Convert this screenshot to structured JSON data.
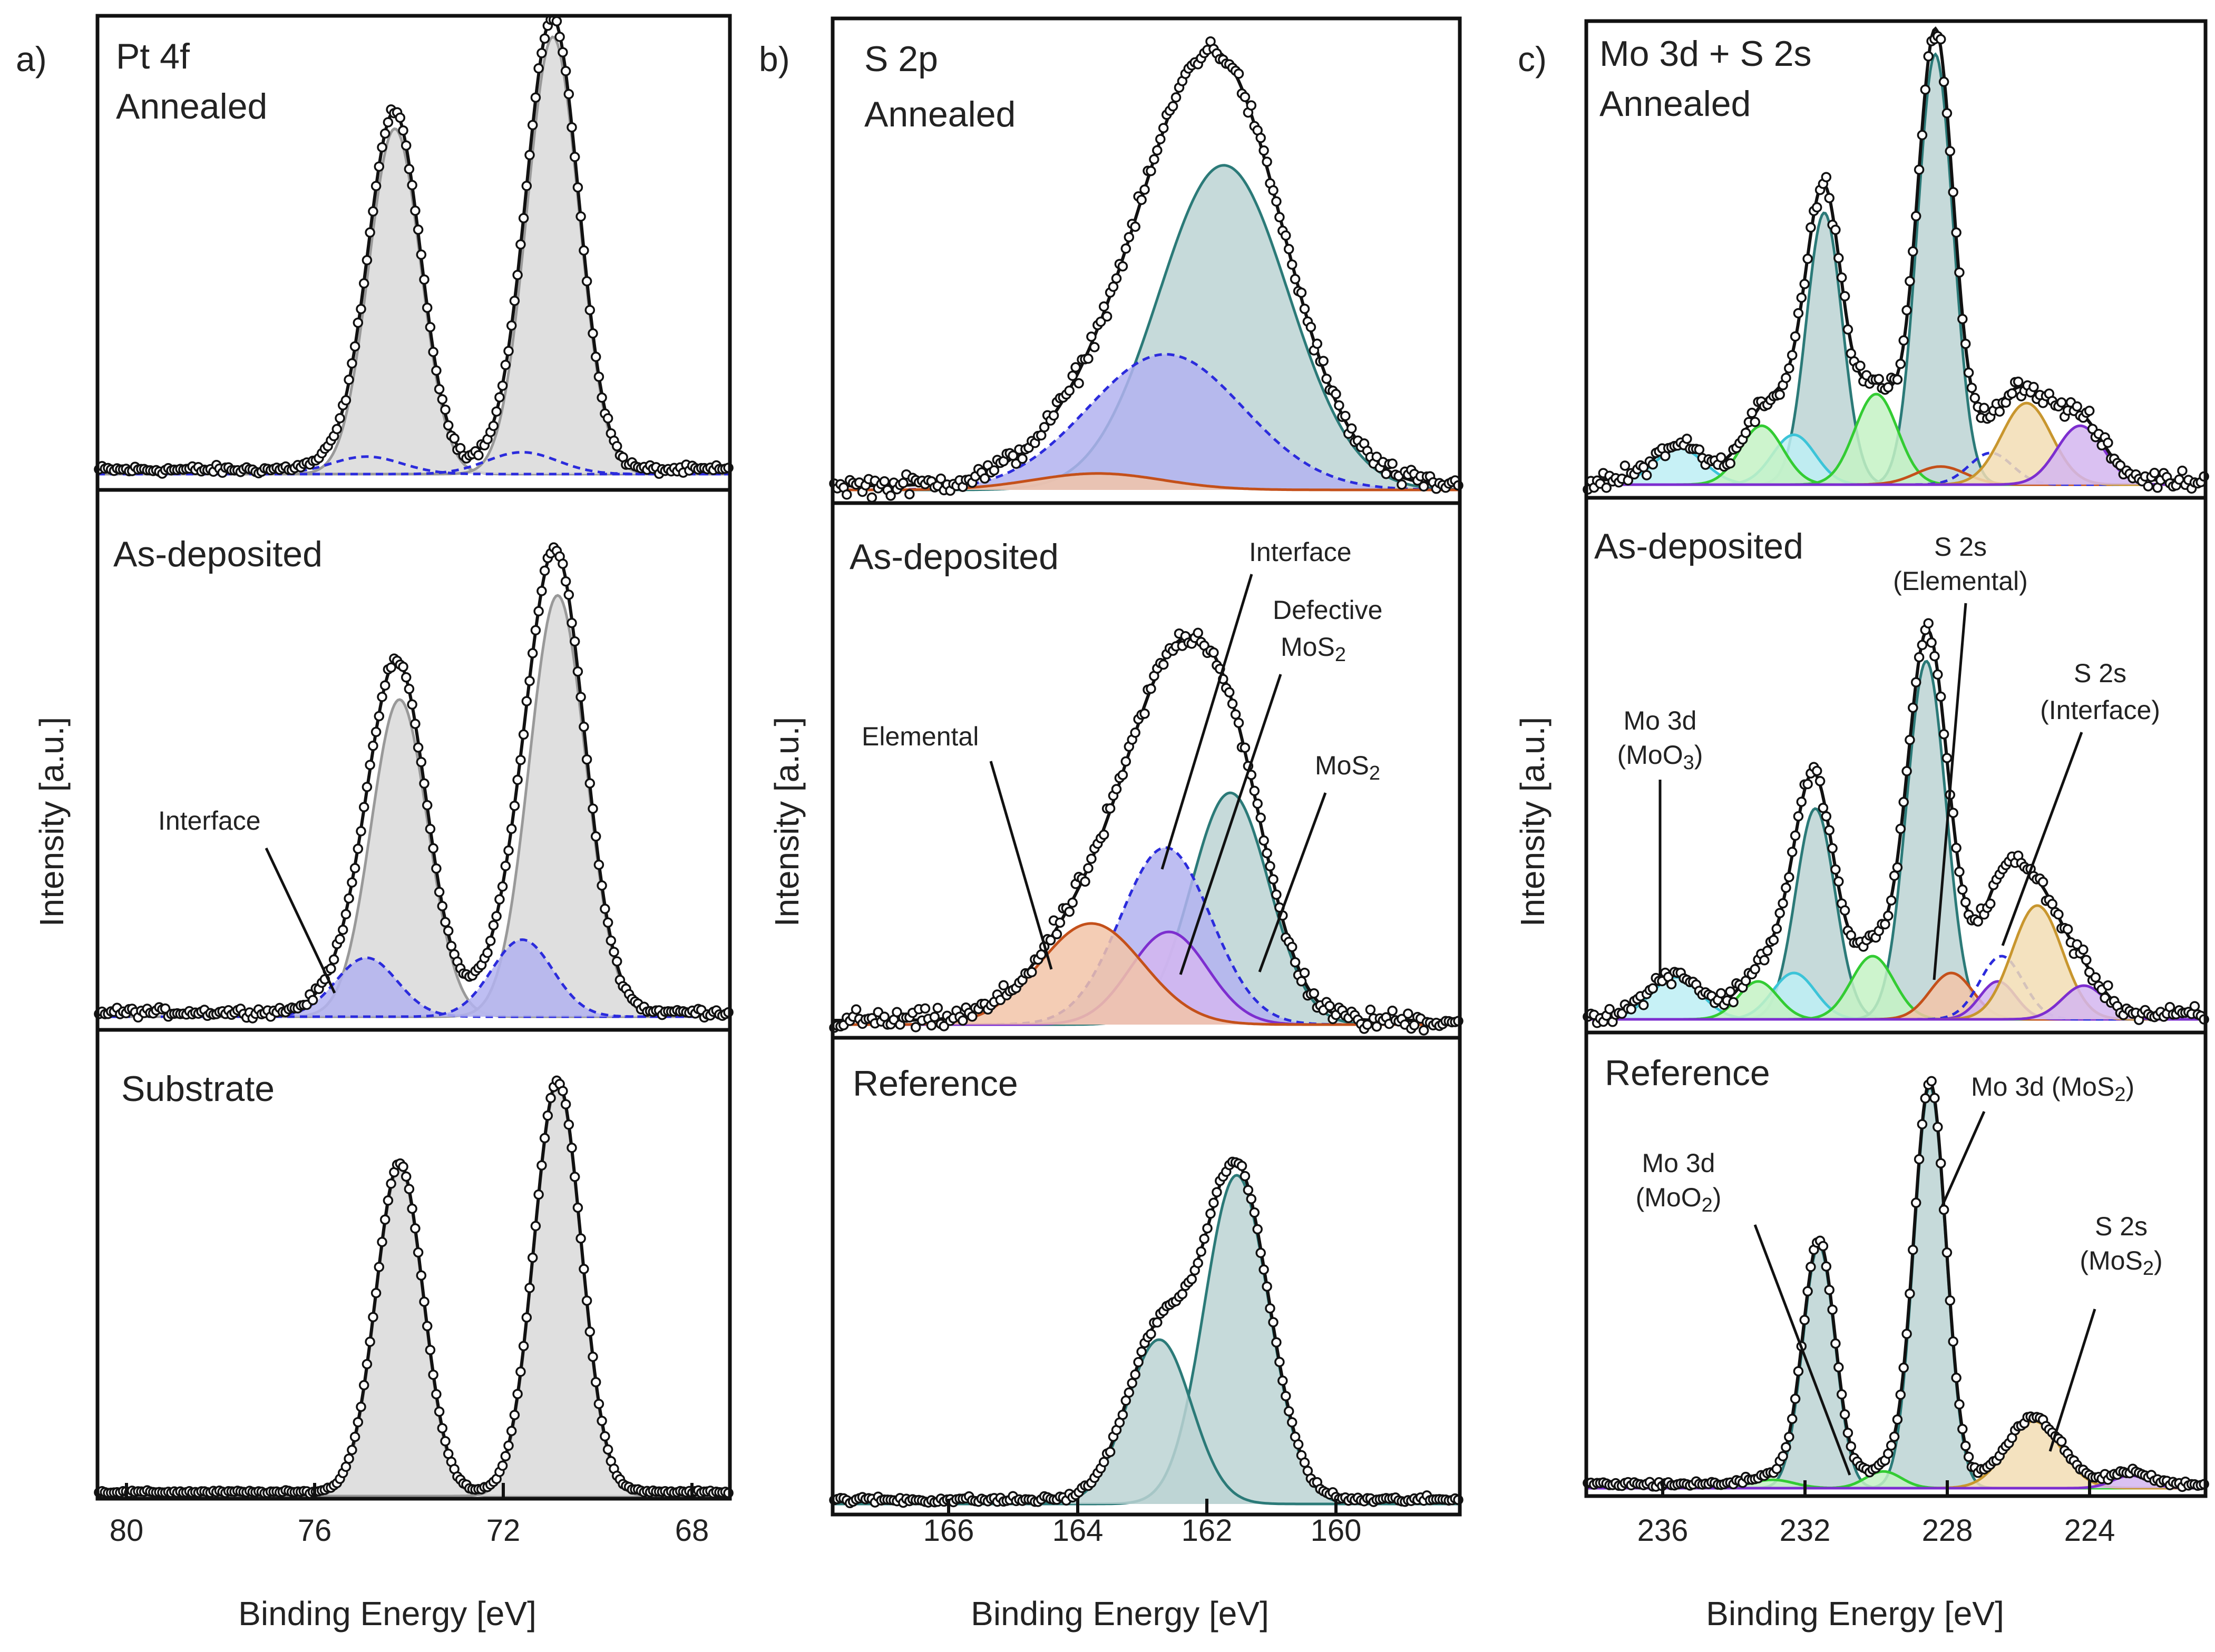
{
  "colors": {
    "pt_fill": "#d9d9d9",
    "pt_line": "#999999",
    "interface": "#2b2bdc",
    "interface_fill": "#b3b3f0",
    "mos2_fill": "#bcd3d3",
    "mos2_line": "#2b7a78",
    "elemental": "#c4501a",
    "elemental_fill": "#f2c4a8",
    "defective": "#7d2ecf",
    "defective_fill": "#d4b6f0",
    "moo3": "#3cc4d8",
    "moo3_fill": "#bdeff5",
    "moo2": "#33cc33",
    "moo2_fill": "#c4f2c4",
    "s2s_mos2": "#c8962e",
    "s2s_mos2_fill": "#f2ddb4",
    "data_point": "#111111",
    "fit": "#111111"
  },
  "chart_data": [
    {
      "id": "a",
      "type": "line",
      "letter": "a)",
      "title": "Pt 4f",
      "xlabel": "Binding Energy [eV]",
      "ylabel": "Intensity [a.u.]",
      "xlim": [
        80.7,
        67.3
      ],
      "xticks": [
        80,
        76,
        72,
        68
      ],
      "xtick_labels": [
        "80",
        "76",
        "72",
        "68"
      ],
      "subpanels": [
        {
          "label": "Annealed",
          "components": [
            {
              "name": "Pt 4f5/2",
              "center": 74.4,
              "amp": 0.79,
              "width": 0.55,
              "color_key": "pt_line",
              "fill_key": "pt_fill",
              "dashed": false
            },
            {
              "name": "Pt 4f7/2",
              "center": 71.05,
              "amp": 1.0,
              "width": 0.55,
              "color_key": "pt_line",
              "fill_key": "pt_fill",
              "dashed": false
            },
            {
              "name": "Interface 5/2",
              "center": 75.0,
              "amp": 0.04,
              "width": 0.75,
              "color_key": "interface",
              "fill_key": null,
              "dashed": true
            },
            {
              "name": "Interface 7/2",
              "center": 71.7,
              "amp": 0.05,
              "width": 0.75,
              "color_key": "interface",
              "fill_key": null,
              "dashed": true
            }
          ]
        },
        {
          "label": "As-deposited",
          "components": [
            {
              "name": "Pt 4f5/2",
              "center": 74.3,
              "amp": 0.7,
              "width": 0.6,
              "color_key": "pt_line",
              "fill_key": "pt_fill",
              "dashed": false
            },
            {
              "name": "Pt 4f7/2",
              "center": 70.95,
              "amp": 0.93,
              "width": 0.6,
              "color_key": "pt_line",
              "fill_key": "pt_fill",
              "dashed": false
            },
            {
              "name": "Interface 5/2",
              "center": 75.0,
              "amp": 0.13,
              "width": 0.65,
              "color_key": "interface",
              "fill_key": "interface_fill",
              "dashed": true
            },
            {
              "name": "Interface 7/2",
              "center": 71.7,
              "amp": 0.17,
              "width": 0.65,
              "color_key": "interface",
              "fill_key": "interface_fill",
              "dashed": true
            }
          ],
          "annotations": [
            {
              "text": "Interface",
              "x": 75.0,
              "y": 0.08
            }
          ]
        },
        {
          "label": "Substrate",
          "components": [
            {
              "name": "Pt 4f5/2",
              "center": 74.3,
              "amp": 0.8,
              "width": 0.5,
              "color_key": "pt_line",
              "fill_key": "pt_fill",
              "dashed": false
            },
            {
              "name": "Pt 4f7/2",
              "center": 70.95,
              "amp": 1.0,
              "width": 0.5,
              "color_key": "pt_line",
              "fill_key": "pt_fill",
              "dashed": false
            }
          ]
        }
      ]
    },
    {
      "id": "b",
      "type": "line",
      "letter": "b)",
      "title": "S 2p",
      "xlabel": "Binding Energy [eV]",
      "ylabel": "Intensity [a.u.]",
      "xlim": [
        168.0,
        158.3
      ],
      "xticks": [
        166,
        164,
        162,
        160
      ],
      "xtick_labels": [
        "166",
        "164",
        "162",
        "160"
      ],
      "subpanels": [
        {
          "label": "Annealed",
          "components": [
            {
              "name": "MoS2",
              "center": 161.95,
              "amp": 0.79,
              "width": 1.0,
              "color_key": "mos2_line",
              "fill_key": "mos2_fill",
              "dashed": false
            },
            {
              "name": "Interface",
              "center": 162.85,
              "amp": 0.33,
              "width": 1.2,
              "color_key": "interface",
              "fill_key": "interface_fill",
              "dashed": true
            },
            {
              "name": "Elemental",
              "center": 163.9,
              "amp": 0.04,
              "width": 1.0,
              "color_key": "elemental",
              "fill_key": "elemental_fill",
              "dashed": false
            }
          ]
        },
        {
          "label": "As-deposited",
          "components": [
            {
              "name": "MoS2",
              "center": 161.85,
              "amp": 0.55,
              "width": 0.6,
              "color_key": "mos2_line",
              "fill_key": "mos2_fill",
              "dashed": false
            },
            {
              "name": "Interface",
              "center": 162.85,
              "amp": 0.42,
              "width": 0.7,
              "color_key": "interface",
              "fill_key": "interface_fill",
              "dashed": true
            },
            {
              "name": "Defective MoS2",
              "center": 162.8,
              "amp": 0.22,
              "width": 0.6,
              "color_key": "defective",
              "fill_key": "defective_fill",
              "dashed": false
            },
            {
              "name": "Elemental",
              "center": 164.0,
              "amp": 0.24,
              "width": 0.8,
              "color_key": "elemental",
              "fill_key": "elemental_fill",
              "dashed": false
            }
          ],
          "annotations": [
            {
              "text": "Elemental",
              "x": 165.0,
              "y": 0.5
            },
            {
              "text": "Interface",
              "x": 162.8,
              "y": 0.62
            },
            {
              "text": "Defective",
              "x": 162.3,
              "y": 0.52
            },
            {
              "text": "MoS2",
              "x": 161.3,
              "y": 0.38
            }
          ]
        },
        {
          "label": "Reference",
          "components": [
            {
              "name": "MoS2 2p3/2",
              "center": 161.75,
              "amp": 0.8,
              "width": 0.5,
              "color_key": "mos2_line",
              "fill_key": "mos2_fill",
              "dashed": false
            },
            {
              "name": "MoS2 2p1/2",
              "center": 162.95,
              "amp": 0.4,
              "width": 0.5,
              "color_key": "mos2_line",
              "fill_key": "mos2_fill",
              "dashed": false
            }
          ]
        }
      ]
    },
    {
      "id": "c",
      "type": "line",
      "letter": "c)",
      "title": "Mo 3d + S 2s",
      "xlabel": "Binding Energy [eV]",
      "ylabel": "Intensity [a.u.]",
      "xlim": [
        238.5,
        221.2
      ],
      "xticks": [
        236,
        232,
        228,
        224
      ],
      "xtick_labels": [
        "236",
        "232",
        "228",
        "224"
      ],
      "subpanels": [
        {
          "label": "Annealed",
          "components": [
            {
              "name": "MoS2 3d3/2",
              "center": 231.85,
              "amp": 0.6,
              "width": 0.5,
              "color_key": "mos2_line",
              "fill_key": "mos2_fill",
              "dashed": false
            },
            {
              "name": "MoS2 3d5/2",
              "center": 228.75,
              "amp": 0.95,
              "width": 0.5,
              "color_key": "mos2_line",
              "fill_key": "mos2_fill",
              "dashed": false
            },
            {
              "name": "MoO3 a",
              "center": 235.9,
              "amp": 0.08,
              "width": 0.7,
              "color_key": "moo3",
              "fill_key": "moo3_fill",
              "dashed": false
            },
            {
              "name": "MoO3 b",
              "center": 232.7,
              "amp": 0.11,
              "width": 0.6,
              "color_key": "moo3",
              "fill_key": "moo3_fill",
              "dashed": false
            },
            {
              "name": "MoO2 a",
              "center": 233.6,
              "amp": 0.13,
              "width": 0.6,
              "color_key": "moo2",
              "fill_key": "moo2_fill",
              "dashed": false
            },
            {
              "name": "MoO2 b",
              "center": 230.4,
              "amp": 0.2,
              "width": 0.6,
              "color_key": "moo2",
              "fill_key": "moo2_fill",
              "dashed": false
            },
            {
              "name": "S 2s Elemental",
              "center": 228.6,
              "amp": 0.04,
              "width": 0.7,
              "color_key": "elemental",
              "fill_key": null,
              "dashed": false
            },
            {
              "name": "S 2s Interface",
              "center": 227.2,
              "amp": 0.07,
              "width": 0.6,
              "color_key": "interface",
              "fill_key": null,
              "dashed": true
            },
            {
              "name": "S 2s MoS2",
              "center": 226.2,
              "amp": 0.18,
              "width": 0.7,
              "color_key": "s2s_mos2",
              "fill_key": "s2s_mos2_fill",
              "dashed": false
            },
            {
              "name": "S 2s Defective",
              "center": 224.7,
              "amp": 0.13,
              "width": 0.65,
              "color_key": "defective",
              "fill_key": "defective_fill",
              "dashed": false
            }
          ]
        },
        {
          "label": "As-deposited",
          "components": [
            {
              "name": "MoS2 3d3/2",
              "center": 232.1,
              "amp": 0.5,
              "width": 0.55,
              "color_key": "mos2_line",
              "fill_key": "mos2_fill",
              "dashed": false
            },
            {
              "name": "MoS2 3d5/2",
              "center": 229.0,
              "amp": 0.85,
              "width": 0.55,
              "color_key": "mos2_line",
              "fill_key": "mos2_fill",
              "dashed": false
            },
            {
              "name": "MoO3 a",
              "center": 236.0,
              "amp": 0.1,
              "width": 0.7,
              "color_key": "moo3",
              "fill_key": "moo3_fill",
              "dashed": false
            },
            {
              "name": "MoO3 b",
              "center": 232.7,
              "amp": 0.11,
              "width": 0.6,
              "color_key": "moo3",
              "fill_key": "moo3_fill",
              "dashed": false
            },
            {
              "name": "MoO2 a",
              "center": 233.7,
              "amp": 0.09,
              "width": 0.55,
              "color_key": "moo2",
              "fill_key": "moo2_fill",
              "dashed": false
            },
            {
              "name": "MoO2 b",
              "center": 230.5,
              "amp": 0.15,
              "width": 0.6,
              "color_key": "moo2",
              "fill_key": "moo2_fill",
              "dashed": false
            },
            {
              "name": "S 2s Elemental",
              "center": 228.3,
              "amp": 0.11,
              "width": 0.6,
              "color_key": "elemental",
              "fill_key": "elemental_fill",
              "dashed": false
            },
            {
              "name": "S 2s Defective",
              "center": 227.0,
              "amp": 0.09,
              "width": 0.5,
              "color_key": "defective",
              "fill_key": "defective_fill",
              "dashed": false
            },
            {
              "name": "S 2s Interface",
              "center": 226.9,
              "amp": 0.15,
              "width": 0.6,
              "color_key": "interface",
              "fill_key": null,
              "dashed": true
            },
            {
              "name": "S 2s MoS2",
              "center": 225.9,
              "amp": 0.27,
              "width": 0.7,
              "color_key": "s2s_mos2",
              "fill_key": "s2s_mos2_fill",
              "dashed": false
            },
            {
              "name": "S 2s tail",
              "center": 224.6,
              "amp": 0.08,
              "width": 0.6,
              "color_key": "defective",
              "fill_key": "defective_fill",
              "dashed": false
            }
          ],
          "annotations": [
            {
              "text": "Mo 3d",
              "x": 236.1,
              "y": 0.08
            },
            {
              "text": "S 2s",
              "x": 228.2,
              "y": 0.12
            },
            {
              "text": "S 2s",
              "x": 225.7,
              "y": 0.34
            }
          ]
        },
        {
          "label": "Reference",
          "components": [
            {
              "name": "MoS2 3d3/2",
              "center": 232.0,
              "amp": 0.58,
              "width": 0.45,
              "color_key": "mos2_line",
              "fill_key": "mos2_fill",
              "dashed": false
            },
            {
              "name": "MoS2 3d5/2",
              "center": 228.9,
              "amp": 0.96,
              "width": 0.45,
              "color_key": "mos2_line",
              "fill_key": "mos2_fill",
              "dashed": false
            },
            {
              "name": "MoO2 a",
              "center": 233.3,
              "amp": 0.02,
              "width": 0.6,
              "color_key": "moo2",
              "fill_key": "moo2_fill",
              "dashed": false
            },
            {
              "name": "MoO2 b",
              "center": 230.2,
              "amp": 0.04,
              "width": 0.5,
              "color_key": "moo2",
              "fill_key": "moo2_fill",
              "dashed": false
            },
            {
              "name": "S 2s MoS2",
              "center": 226.0,
              "amp": 0.16,
              "width": 0.75,
              "color_key": "s2s_mos2",
              "fill_key": "s2s_mos2_fill",
              "dashed": false
            },
            {
              "name": "S 2s tail",
              "center": 223.3,
              "amp": 0.03,
              "width": 0.5,
              "color_key": "defective",
              "fill_key": "defective_fill",
              "dashed": false
            }
          ],
          "annotations": [
            {
              "text": "Mo 3d",
              "x": 230.6,
              "y": 0.03
            },
            {
              "text": "Mo 3d (MoS2)",
              "x": 228.6,
              "y": 0.62
            },
            {
              "text": "S 2s",
              "x": 225.8,
              "y": 0.13
            }
          ]
        }
      ]
    }
  ],
  "labels": {
    "a": {
      "letter": "a)",
      "title_1": "Pt 4f",
      "title_2": "Annealed",
      "sub_2": "As-deposited",
      "sub_3": "Substrate",
      "interface": "Interface",
      "ylabel": "Intensity [a.u.]",
      "xlabel": "Binding Energy [eV]",
      "ticks": [
        "80",
        "76",
        "72",
        "68"
      ]
    },
    "b": {
      "letter": "b)",
      "title_1": "S 2p",
      "title_2": "Annealed",
      "sub_2": "As-deposited",
      "sub_3": "Reference",
      "elemental": "Elemental",
      "interface": "Interface",
      "defective_1": "Defective",
      "defective_2": "MoS",
      "defective_sub": "2",
      "mos2": "MoS",
      "mos2_sub": "2",
      "ylabel": "Intensity [a.u.]",
      "xlabel": "Binding Energy [eV]",
      "ticks": [
        "166",
        "164",
        "162",
        "160"
      ]
    },
    "c": {
      "letter": "c)",
      "title_1": "Mo 3d + S 2s",
      "title_2": "Annealed",
      "sub_2": "As-deposited",
      "sub_3": "Reference",
      "s2s_el_1": "S 2s",
      "s2s_el_2": "(Elemental)",
      "s2s_if_1": "S 2s",
      "s2s_if_2": "(Interface)",
      "moo3_1": "Mo 3d",
      "moo3_2a": "(MoO",
      "moo3_sub": "3",
      "moo3_2b": ")",
      "moo2_1": "Mo 3d",
      "moo2_2a": "(MoO",
      "moo2_sub": "2",
      "moo2_2b": ")",
      "mo3d_mos2_a": "Mo 3d (MoS",
      "mo3d_mos2_sub": "2",
      "mo3d_mos2_b": ")",
      "s2s_mos2_1": "S 2s",
      "s2s_mos2_2a": "(MoS",
      "s2s_mos2_sub": "2",
      "s2s_mos2_2b": ")",
      "ylabel": "Intensity [a.u.]",
      "xlabel": "Binding Energy [eV]",
      "ticks": [
        "236",
        "232",
        "228",
        "224"
      ]
    }
  }
}
